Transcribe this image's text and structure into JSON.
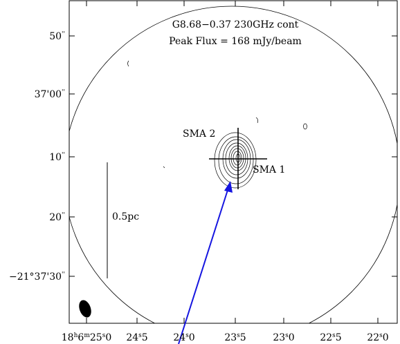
{
  "figure": {
    "title": "G8.68−0.37 230GHz cont",
    "subtitle": "Peak Flux = 168 mJy/beam",
    "sources": [
      "SMA 1",
      "SMA 2"
    ],
    "scale_bar": "0.5pc",
    "x_tick_labels": [
      [
        {
          "t": "18"
        },
        {
          "t": "h",
          "sup": true
        },
        {
          "t": "6"
        },
        {
          "t": "m",
          "sup": true
        },
        {
          "t": "25"
        },
        {
          "t": "s",
          "sup": true
        },
        {
          "t": "0"
        }
      ],
      [
        {
          "t": "24"
        },
        {
          "t": "s",
          "sup": true
        },
        {
          "t": "5"
        }
      ],
      [
        {
          "t": "24"
        },
        {
          "t": "s",
          "sup": true
        },
        {
          "t": "0"
        }
      ],
      [
        {
          "t": "23"
        },
        {
          "t": "s",
          "sup": true
        },
        {
          "t": "5"
        }
      ],
      [
        {
          "t": "23"
        },
        {
          "t": "s",
          "sup": true
        },
        {
          "t": "0"
        }
      ],
      [
        {
          "t": "22"
        },
        {
          "t": "s",
          "sup": true
        },
        {
          "t": "5"
        }
      ],
      [
        {
          "t": "22"
        },
        {
          "t": "s",
          "sup": true
        },
        {
          "t": "0"
        }
      ]
    ],
    "y_tick_labels": [
      [
        {
          "t": "50"
        },
        {
          "t": "''",
          "sup": true
        }
      ],
      [
        {
          "t": "37'00"
        },
        {
          "t": "''",
          "sup": true
        }
      ],
      [
        {
          "t": "10"
        },
        {
          "t": "''",
          "sup": true
        }
      ],
      [
        {
          "t": "20"
        },
        {
          "t": "''",
          "sup": true
        }
      ],
      [
        {
          "t": "−21°37'30"
        },
        {
          "t": "''",
          "sup": true
        }
      ]
    ]
  }
}
